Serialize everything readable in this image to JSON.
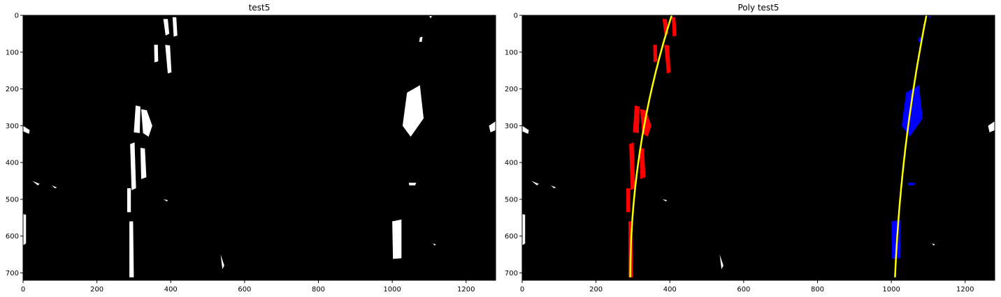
{
  "panels": [
    {
      "title": "test5",
      "x_ticks": [
        "0",
        "200",
        "400",
        "600",
        "800",
        "1000",
        "1200"
      ],
      "y_ticks": [
        "0",
        "100",
        "200",
        "300",
        "400",
        "500",
        "600",
        "700"
      ],
      "xlim": [
        0,
        1280
      ],
      "ylim": [
        0,
        720
      ],
      "show_fit": false
    },
    {
      "title": "Poly test5",
      "x_ticks": [
        "0",
        "200",
        "400",
        "600",
        "800",
        "1000",
        "1200"
      ],
      "y_ticks": [
        "0",
        "100",
        "200",
        "300",
        "400",
        "500",
        "600",
        "700"
      ],
      "xlim": [
        0,
        1280
      ],
      "ylim": [
        0,
        720
      ],
      "show_fit": true
    }
  ],
  "colors": {
    "background": "#000000",
    "binary": "#ffffff",
    "left_lane": "#ff0000",
    "right_lane": "#0000ff",
    "fit_line": "#ffff00"
  }
}
